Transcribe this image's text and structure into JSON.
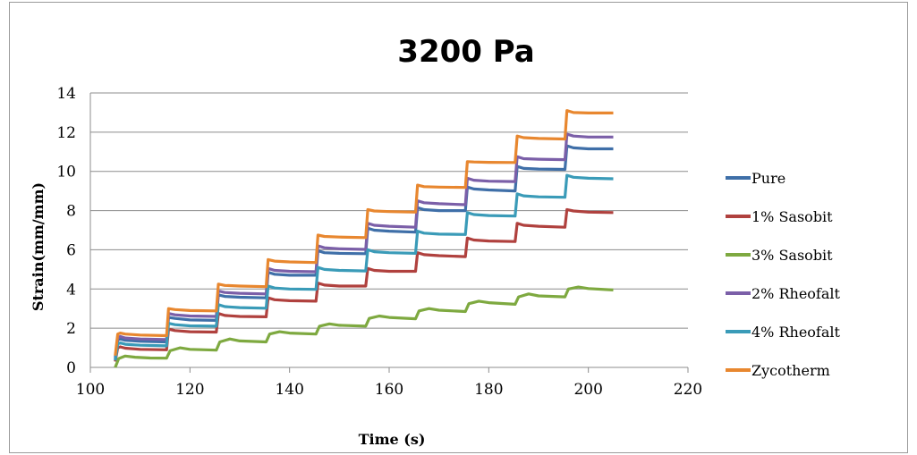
{
  "chart_data": {
    "type": "line",
    "title": "3200 Pa",
    "xlabel": "Time (s)",
    "ylabel": "Strain(mm/mm)",
    "xlim": [
      100,
      220
    ],
    "ylim": [
      0,
      14
    ],
    "x_ticks": [
      100,
      120,
      140,
      160,
      180,
      200,
      220
    ],
    "y_ticks": [
      0,
      2,
      4,
      6,
      8,
      10,
      12,
      14
    ],
    "grid": "horizontal",
    "legend_position": "right",
    "series": [
      {
        "name": "Pure",
        "color": "#3F6FA8",
        "points": [
          [
            105,
            0.4
          ],
          [
            105.5,
            1.4
          ],
          [
            106,
            1.45
          ],
          [
            107,
            1.38
          ],
          [
            110,
            1.33
          ],
          [
            115.3,
            1.3
          ],
          [
            115.7,
            2.55
          ],
          [
            117,
            2.5
          ],
          [
            120,
            2.42
          ],
          [
            125.3,
            2.4
          ],
          [
            125.7,
            3.7
          ],
          [
            127,
            3.62
          ],
          [
            130,
            3.58
          ],
          [
            135.3,
            3.55
          ],
          [
            135.7,
            4.85
          ],
          [
            137,
            4.75
          ],
          [
            140,
            4.7
          ],
          [
            145.3,
            4.7
          ],
          [
            145.7,
            5.95
          ],
          [
            147,
            5.85
          ],
          [
            150,
            5.82
          ],
          [
            155.3,
            5.8
          ],
          [
            155.7,
            7.1
          ],
          [
            157,
            7.0
          ],
          [
            160,
            6.95
          ],
          [
            165.3,
            6.9
          ],
          [
            165.7,
            8.15
          ],
          [
            167,
            8.05
          ],
          [
            170,
            8.0
          ],
          [
            175.3,
            8.0
          ],
          [
            175.7,
            9.2
          ],
          [
            177,
            9.1
          ],
          [
            180,
            9.05
          ],
          [
            185.3,
            9.0
          ],
          [
            185.7,
            10.25
          ],
          [
            187,
            10.15
          ],
          [
            190,
            10.12
          ],
          [
            195.3,
            10.1
          ],
          [
            195.7,
            11.3
          ],
          [
            197,
            11.2
          ],
          [
            200,
            11.15
          ],
          [
            205,
            11.15
          ]
        ]
      },
      {
        "name": "1% Sasobit",
        "color": "#B0413E",
        "points": [
          [
            105,
            0.3
          ],
          [
            105.5,
            1.0
          ],
          [
            106,
            1.05
          ],
          [
            107,
            0.98
          ],
          [
            110,
            0.92
          ],
          [
            115.3,
            0.9
          ],
          [
            115.7,
            1.95
          ],
          [
            117,
            1.88
          ],
          [
            120,
            1.82
          ],
          [
            125.3,
            1.8
          ],
          [
            125.7,
            2.75
          ],
          [
            127,
            2.65
          ],
          [
            130,
            2.6
          ],
          [
            135.3,
            2.58
          ],
          [
            135.7,
            3.55
          ],
          [
            137,
            3.45
          ],
          [
            140,
            3.4
          ],
          [
            145.3,
            3.38
          ],
          [
            145.7,
            4.3
          ],
          [
            147,
            4.2
          ],
          [
            150,
            4.15
          ],
          [
            155.3,
            4.15
          ],
          [
            155.7,
            5.05
          ],
          [
            157,
            4.95
          ],
          [
            160,
            4.9
          ],
          [
            165.3,
            4.9
          ],
          [
            165.7,
            5.85
          ],
          [
            167,
            5.75
          ],
          [
            170,
            5.7
          ],
          [
            175.3,
            5.65
          ],
          [
            175.7,
            6.6
          ],
          [
            177,
            6.5
          ],
          [
            180,
            6.45
          ],
          [
            185.3,
            6.42
          ],
          [
            185.7,
            7.35
          ],
          [
            187,
            7.25
          ],
          [
            190,
            7.2
          ],
          [
            195.3,
            7.15
          ],
          [
            195.7,
            8.05
          ],
          [
            197,
            7.98
          ],
          [
            200,
            7.92
          ],
          [
            205,
            7.9
          ]
        ]
      },
      {
        "name": "3% Sasobit",
        "color": "#7EA940",
        "points": [
          [
            105,
            0.0
          ],
          [
            105.7,
            0.45
          ],
          [
            107,
            0.58
          ],
          [
            109,
            0.52
          ],
          [
            112,
            0.48
          ],
          [
            115.3,
            0.47
          ],
          [
            116,
            0.85
          ],
          [
            118,
            1.0
          ],
          [
            120,
            0.92
          ],
          [
            125.3,
            0.88
          ],
          [
            126,
            1.3
          ],
          [
            128,
            1.45
          ],
          [
            130,
            1.35
          ],
          [
            135.3,
            1.3
          ],
          [
            136,
            1.7
          ],
          [
            138,
            1.82
          ],
          [
            140,
            1.75
          ],
          [
            145.3,
            1.7
          ],
          [
            146,
            2.1
          ],
          [
            148,
            2.22
          ],
          [
            150,
            2.15
          ],
          [
            155.3,
            2.1
          ],
          [
            156,
            2.5
          ],
          [
            158,
            2.62
          ],
          [
            160,
            2.55
          ],
          [
            165.3,
            2.48
          ],
          [
            166,
            2.88
          ],
          [
            168,
            3.0
          ],
          [
            170,
            2.92
          ],
          [
            175.3,
            2.85
          ],
          [
            176,
            3.25
          ],
          [
            178,
            3.38
          ],
          [
            180,
            3.3
          ],
          [
            185.3,
            3.22
          ],
          [
            186,
            3.6
          ],
          [
            188,
            3.75
          ],
          [
            190,
            3.65
          ],
          [
            195.3,
            3.6
          ],
          [
            196,
            4.0
          ],
          [
            198,
            4.1
          ],
          [
            200,
            4.02
          ],
          [
            205,
            3.95
          ]
        ]
      },
      {
        "name": "2% Rheofalt",
        "color": "#7B5FA8",
        "points": [
          [
            105,
            0.5
          ],
          [
            105.5,
            1.5
          ],
          [
            106,
            1.58
          ],
          [
            107,
            1.5
          ],
          [
            110,
            1.45
          ],
          [
            115.3,
            1.42
          ],
          [
            115.7,
            2.75
          ],
          [
            117,
            2.68
          ],
          [
            120,
            2.62
          ],
          [
            125.3,
            2.6
          ],
          [
            125.7,
            3.9
          ],
          [
            127,
            3.82
          ],
          [
            130,
            3.78
          ],
          [
            135.3,
            3.75
          ],
          [
            135.7,
            5.05
          ],
          [
            137,
            4.95
          ],
          [
            140,
            4.9
          ],
          [
            145.3,
            4.88
          ],
          [
            145.7,
            6.2
          ],
          [
            147,
            6.1
          ],
          [
            150,
            6.05
          ],
          [
            155.3,
            6.02
          ],
          [
            155.7,
            7.35
          ],
          [
            157,
            7.25
          ],
          [
            160,
            7.2
          ],
          [
            165.3,
            7.15
          ],
          [
            165.7,
            8.5
          ],
          [
            167,
            8.4
          ],
          [
            170,
            8.35
          ],
          [
            175.3,
            8.3
          ],
          [
            175.7,
            9.65
          ],
          [
            177,
            9.55
          ],
          [
            180,
            9.5
          ],
          [
            185.3,
            9.48
          ],
          [
            185.7,
            10.75
          ],
          [
            187,
            10.65
          ],
          [
            190,
            10.62
          ],
          [
            195.3,
            10.6
          ],
          [
            195.7,
            11.9
          ],
          [
            197,
            11.8
          ],
          [
            200,
            11.75
          ],
          [
            205,
            11.75
          ]
        ]
      },
      {
        "name": "4% Rheofalt",
        "color": "#3A9BB8",
        "points": [
          [
            105,
            0.35
          ],
          [
            105.5,
            1.2
          ],
          [
            106,
            1.25
          ],
          [
            107,
            1.18
          ],
          [
            110,
            1.13
          ],
          [
            115.3,
            1.1
          ],
          [
            115.7,
            2.25
          ],
          [
            117,
            2.18
          ],
          [
            120,
            2.12
          ],
          [
            125.3,
            2.1
          ],
          [
            125.7,
            3.2
          ],
          [
            127,
            3.1
          ],
          [
            130,
            3.05
          ],
          [
            135.3,
            3.02
          ],
          [
            135.7,
            4.15
          ],
          [
            137,
            4.05
          ],
          [
            140,
            4.0
          ],
          [
            145.3,
            3.98
          ],
          [
            145.7,
            5.1
          ],
          [
            147,
            5.0
          ],
          [
            150,
            4.95
          ],
          [
            155.3,
            4.92
          ],
          [
            155.7,
            6.0
          ],
          [
            157,
            5.9
          ],
          [
            160,
            5.85
          ],
          [
            165.3,
            5.82
          ],
          [
            165.7,
            6.95
          ],
          [
            167,
            6.85
          ],
          [
            170,
            6.8
          ],
          [
            175.3,
            6.78
          ],
          [
            175.7,
            7.9
          ],
          [
            177,
            7.8
          ],
          [
            180,
            7.75
          ],
          [
            185.3,
            7.72
          ],
          [
            185.7,
            8.85
          ],
          [
            187,
            8.75
          ],
          [
            190,
            8.7
          ],
          [
            195.3,
            8.68
          ],
          [
            195.7,
            9.8
          ],
          [
            197,
            9.7
          ],
          [
            200,
            9.65
          ],
          [
            205,
            9.62
          ]
        ]
      },
      {
        "name": "Zycotherm",
        "color": "#E8872F",
        "points": [
          [
            105,
            0.6
          ],
          [
            105.5,
            1.7
          ],
          [
            106,
            1.75
          ],
          [
            107,
            1.7
          ],
          [
            110,
            1.65
          ],
          [
            115.3,
            1.62
          ],
          [
            115.7,
            3.0
          ],
          [
            117,
            2.95
          ],
          [
            120,
            2.9
          ],
          [
            125.3,
            2.88
          ],
          [
            125.7,
            4.25
          ],
          [
            127,
            4.18
          ],
          [
            130,
            4.15
          ],
          [
            135.3,
            4.12
          ],
          [
            135.7,
            5.5
          ],
          [
            137,
            5.42
          ],
          [
            140,
            5.38
          ],
          [
            145.3,
            5.35
          ],
          [
            145.7,
            6.75
          ],
          [
            147,
            6.68
          ],
          [
            150,
            6.65
          ],
          [
            155.3,
            6.62
          ],
          [
            155.7,
            8.05
          ],
          [
            157,
            7.98
          ],
          [
            160,
            7.95
          ],
          [
            165.3,
            7.92
          ],
          [
            165.7,
            9.3
          ],
          [
            167,
            9.22
          ],
          [
            170,
            9.2
          ],
          [
            175.3,
            9.18
          ],
          [
            175.7,
            10.5
          ],
          [
            177,
            10.48
          ],
          [
            180,
            10.46
          ],
          [
            185.3,
            10.45
          ],
          [
            185.7,
            11.8
          ],
          [
            187,
            11.72
          ],
          [
            190,
            11.68
          ],
          [
            195.3,
            11.65
          ],
          [
            195.7,
            13.1
          ],
          [
            197,
            13.0
          ],
          [
            200,
            12.98
          ],
          [
            205,
            12.98
          ]
        ]
      }
    ]
  }
}
